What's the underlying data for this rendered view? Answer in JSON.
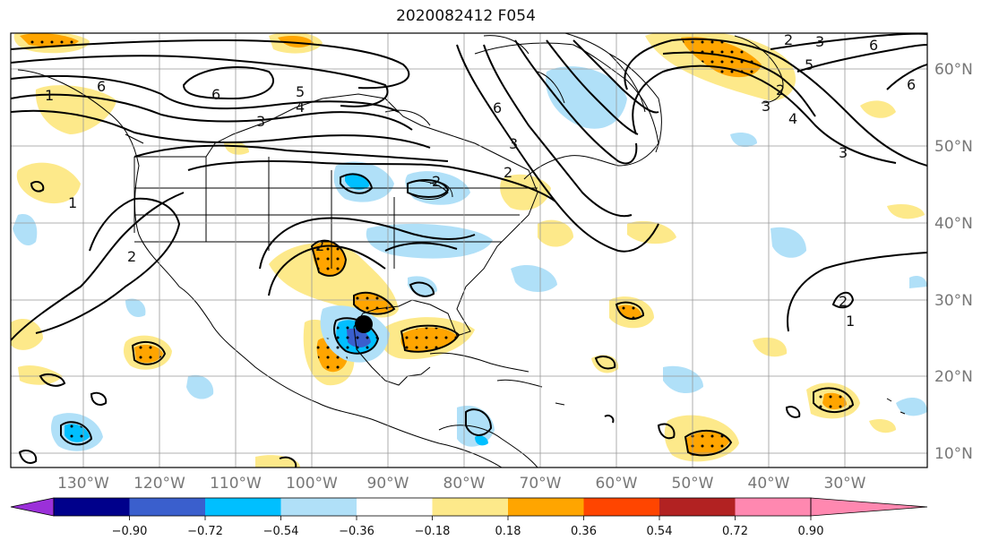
{
  "title": "2020082412 F054",
  "longitude_labels": [
    "130°W",
    "120°W",
    "110°W",
    "100°W",
    "90°W",
    "80°W",
    "70°W",
    "60°W",
    "50°W",
    "40°W",
    "30°W"
  ],
  "latitude_labels": [
    "60°N",
    "50°N",
    "40°N",
    "30°N",
    "20°N",
    "10°N"
  ],
  "colorbar": {
    "ticks": [
      "−0.90",
      "−0.72",
      "−0.54",
      "−0.36",
      "−0.18",
      "0.18",
      "0.36",
      "0.54",
      "0.72",
      "0.90"
    ],
    "colors": [
      "#9b30d9",
      "#00008b",
      "#3a5fcd",
      "#00bfff",
      "#b0e0f8",
      "#ffffff",
      "#fde98a",
      "#ffa500",
      "#ff4500",
      "#b22222",
      "#ff88b0"
    ]
  },
  "contour_labels": [
    "6",
    "6",
    "4",
    "3",
    "5",
    "1",
    "2",
    "6",
    "3",
    "2",
    "2",
    "3",
    "6",
    "5",
    "2",
    "3",
    "4",
    "3",
    "6",
    "1",
    "2",
    "1",
    "2",
    "2"
  ],
  "storm_marker": {
    "label": "",
    "lon": -93.5,
    "lat": 27.5
  }
}
